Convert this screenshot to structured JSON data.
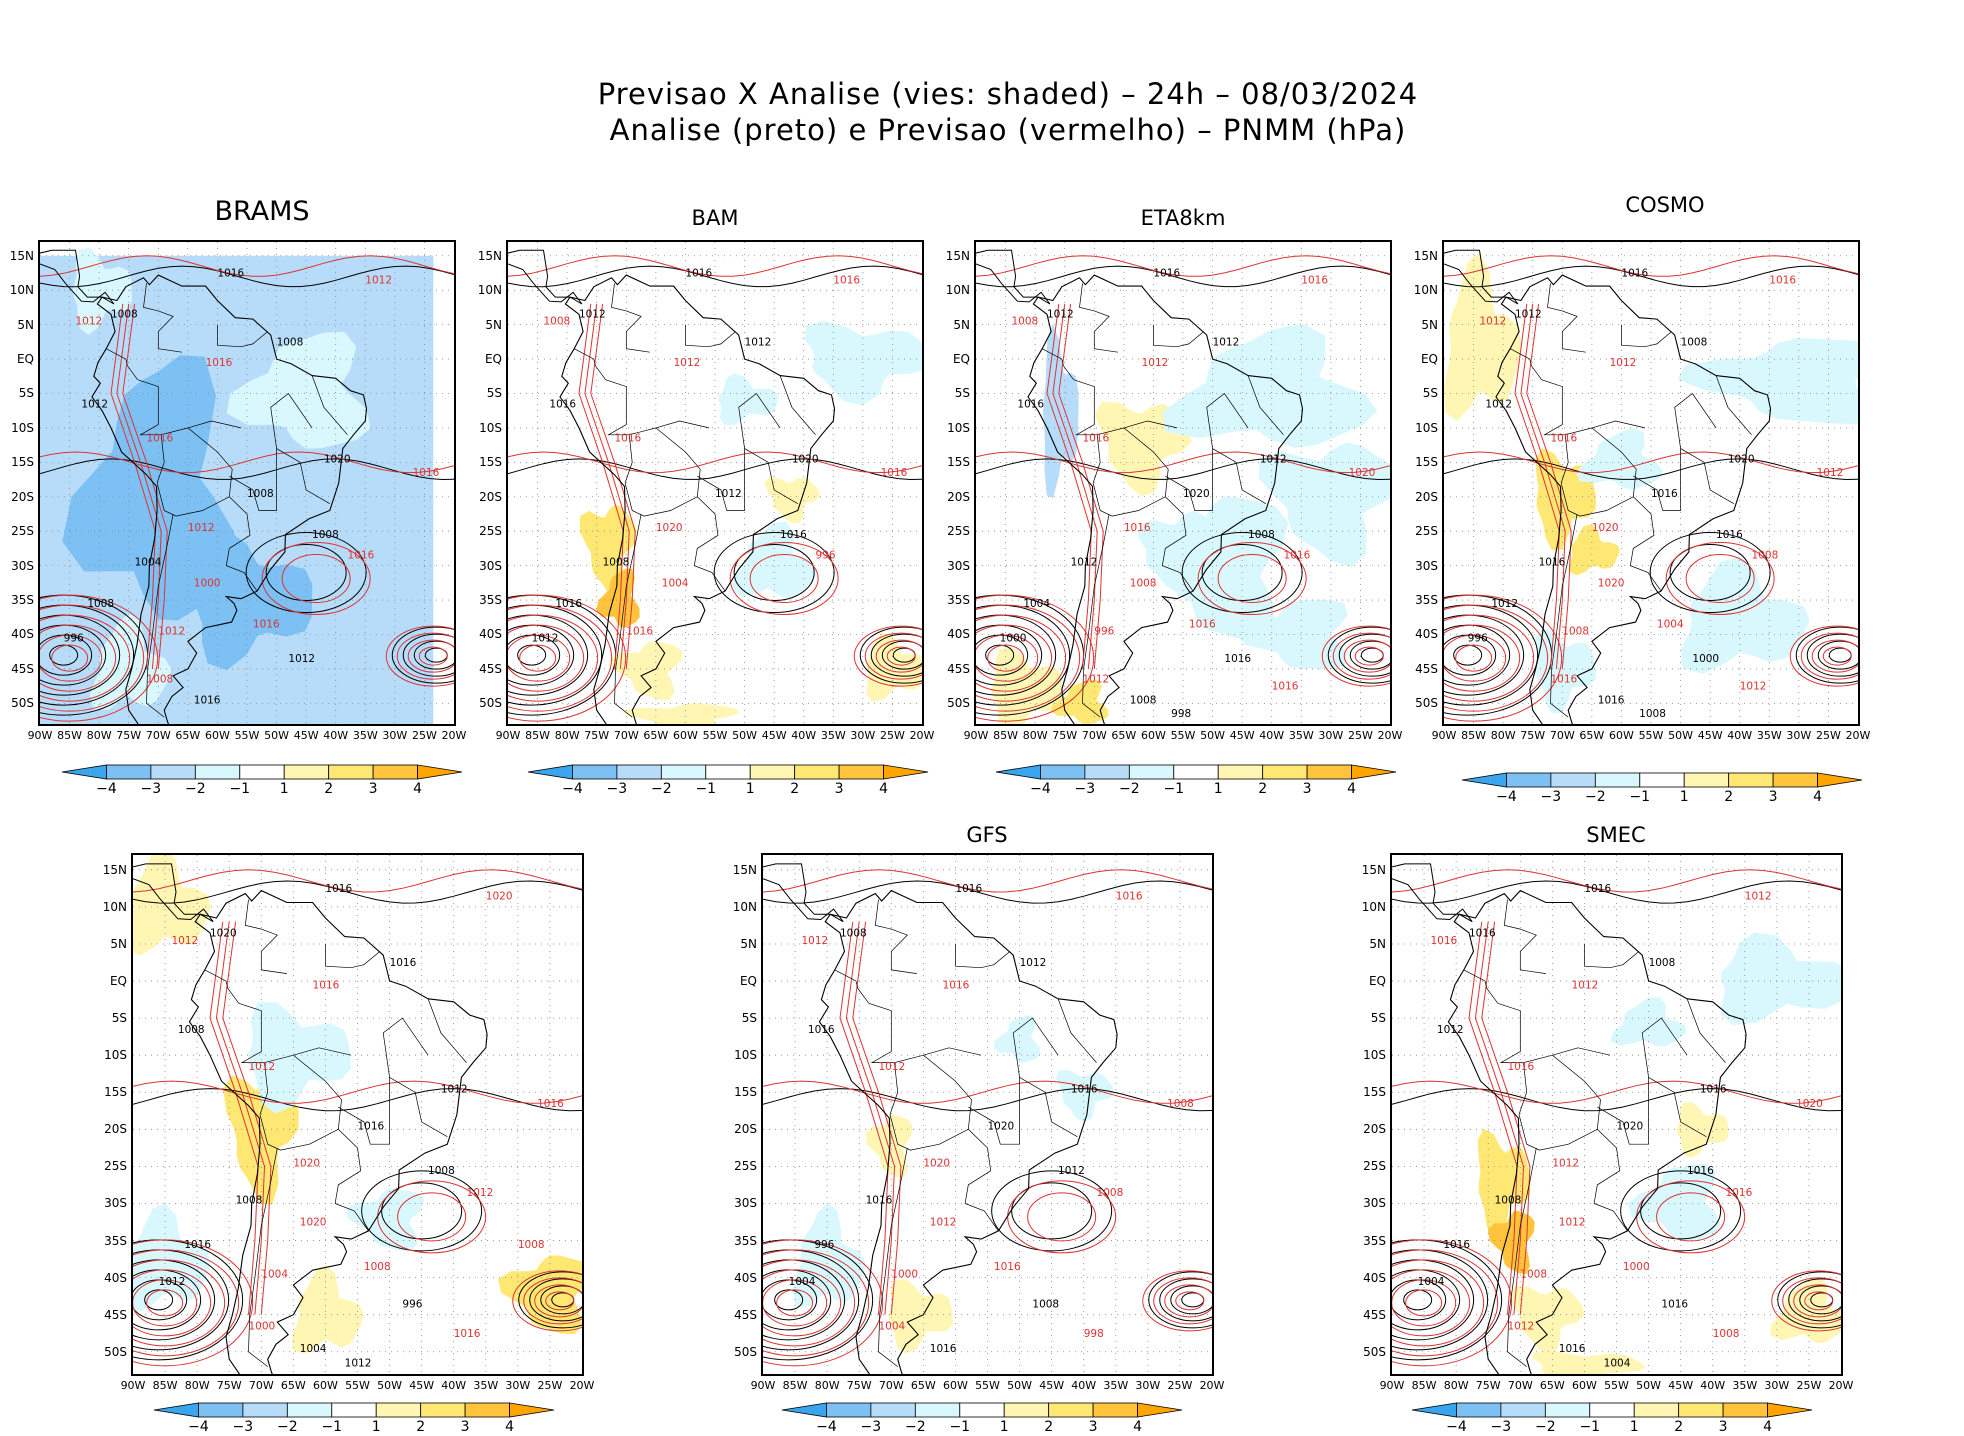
{
  "header": {
    "line1": "Previsao X Analise (vies: shaded) – 24h – 08/03/2024",
    "line2": "Analise (preto) e Previsao (vermelho) – PNMM (hPa)"
  },
  "axes": {
    "lat_labels": [
      "15N",
      "10N",
      "5N",
      "EQ",
      "5S",
      "10S",
      "15S",
      "20S",
      "25S",
      "30S",
      "35S",
      "40S",
      "45S",
      "50S"
    ],
    "lon_labels": [
      "90W",
      "85W",
      "80W",
      "75W",
      "70W",
      "65W",
      "60W",
      "55W",
      "50W",
      "45W",
      "40W",
      "35W",
      "30W",
      "25W",
      "20W"
    ]
  },
  "colorbar": {
    "labels": [
      "−4",
      "−3",
      "−2",
      "−1",
      "1",
      "2",
      "3",
      "4"
    ],
    "colors": [
      "#3aa5ec",
      "#7cc0f4",
      "#b7dcfa",
      "#d9f8fd",
      "#ffffff",
      "#fff6b4",
      "#ffe773",
      "#ffc43b",
      "#ffa400"
    ]
  },
  "colors": {
    "analysis_contour": "#000000",
    "forecast_contour": "#dd3333",
    "land_outline": "#000000"
  },
  "panels": [
    {
      "title": "BRAMS",
      "bias": "negative-wide",
      "contours": [
        "1016",
        "1012",
        "1008",
        "1012",
        "1008",
        "1016",
        "1012",
        "1016",
        "1020",
        "1016",
        "1008",
        "1012",
        "1008",
        "1016",
        "1004",
        "1000",
        "1008",
        "1012",
        "996",
        "1016",
        "1012",
        "1008",
        "1016"
      ]
    },
    {
      "title": "BAM",
      "bias": "mixed-positive",
      "contours": [
        "1016",
        "1016",
        "1012",
        "1008",
        "1012",
        "1012",
        "1016",
        "1016",
        "1020",
        "1016",
        "1012",
        "1020",
        "1016",
        "996",
        "1008",
        "1004",
        "1016",
        "1016",
        "1012"
      ]
    },
    {
      "title": "ETA8km",
      "bias": "mixed-negative",
      "contours": [
        "1016",
        "1016",
        "1012",
        "1008",
        "1012",
        "1012",
        "1016",
        "1016",
        "1012",
        "1020",
        "1020",
        "1016",
        "1008",
        "1016",
        "1012",
        "1008",
        "1004",
        "996",
        "1000",
        "1016",
        "1016",
        "1012",
        "1008",
        "1016",
        "998"
      ]
    },
    {
      "title": "COSMO",
      "bias": "mixed-positive-north",
      "contours": [
        "1016",
        "1016",
        "1012",
        "1012",
        "1008",
        "1012",
        "1012",
        "1016",
        "1020",
        "1012",
        "1016",
        "1020",
        "1016",
        "1008",
        "1016",
        "1020",
        "1012",
        "1008",
        "996",
        "1004",
        "1000",
        "1016",
        "1016",
        "1012",
        "1008"
      ]
    },
    {
      "title": "",
      "bias": "mixed",
      "contours": [
        "1016",
        "1020",
        "1020",
        "1012",
        "1016",
        "1016",
        "1008",
        "1012",
        "1012",
        "1016",
        "1016",
        "1020",
        "1008",
        "1012",
        "1008",
        "1020",
        "1016",
        "1004",
        "1012",
        "1008",
        "996",
        "1000",
        "1004",
        "1016",
        "1012",
        "1008"
      ]
    },
    {
      "title": "GFS",
      "bias": "light",
      "contours": [
        "1016",
        "1016",
        "1008",
        "1012",
        "1012",
        "1016",
        "1016",
        "1012",
        "1016",
        "1008",
        "1020",
        "1020",
        "1012",
        "1008",
        "1016",
        "1012",
        "996",
        "1000",
        "1004",
        "1016",
        "1008",
        "1004",
        "1016",
        "998"
      ]
    },
    {
      "title": "SMEC",
      "bias": "mixed-positive",
      "contours": [
        "1016",
        "1012",
        "1016",
        "1016",
        "1008",
        "1012",
        "1012",
        "1016",
        "1016",
        "1020",
        "1020",
        "1012",
        "1016",
        "1016",
        "1008",
        "1012",
        "1016",
        "1008",
        "1004",
        "1000",
        "1016",
        "1012",
        "1016",
        "1008",
        "1004"
      ]
    }
  ]
}
